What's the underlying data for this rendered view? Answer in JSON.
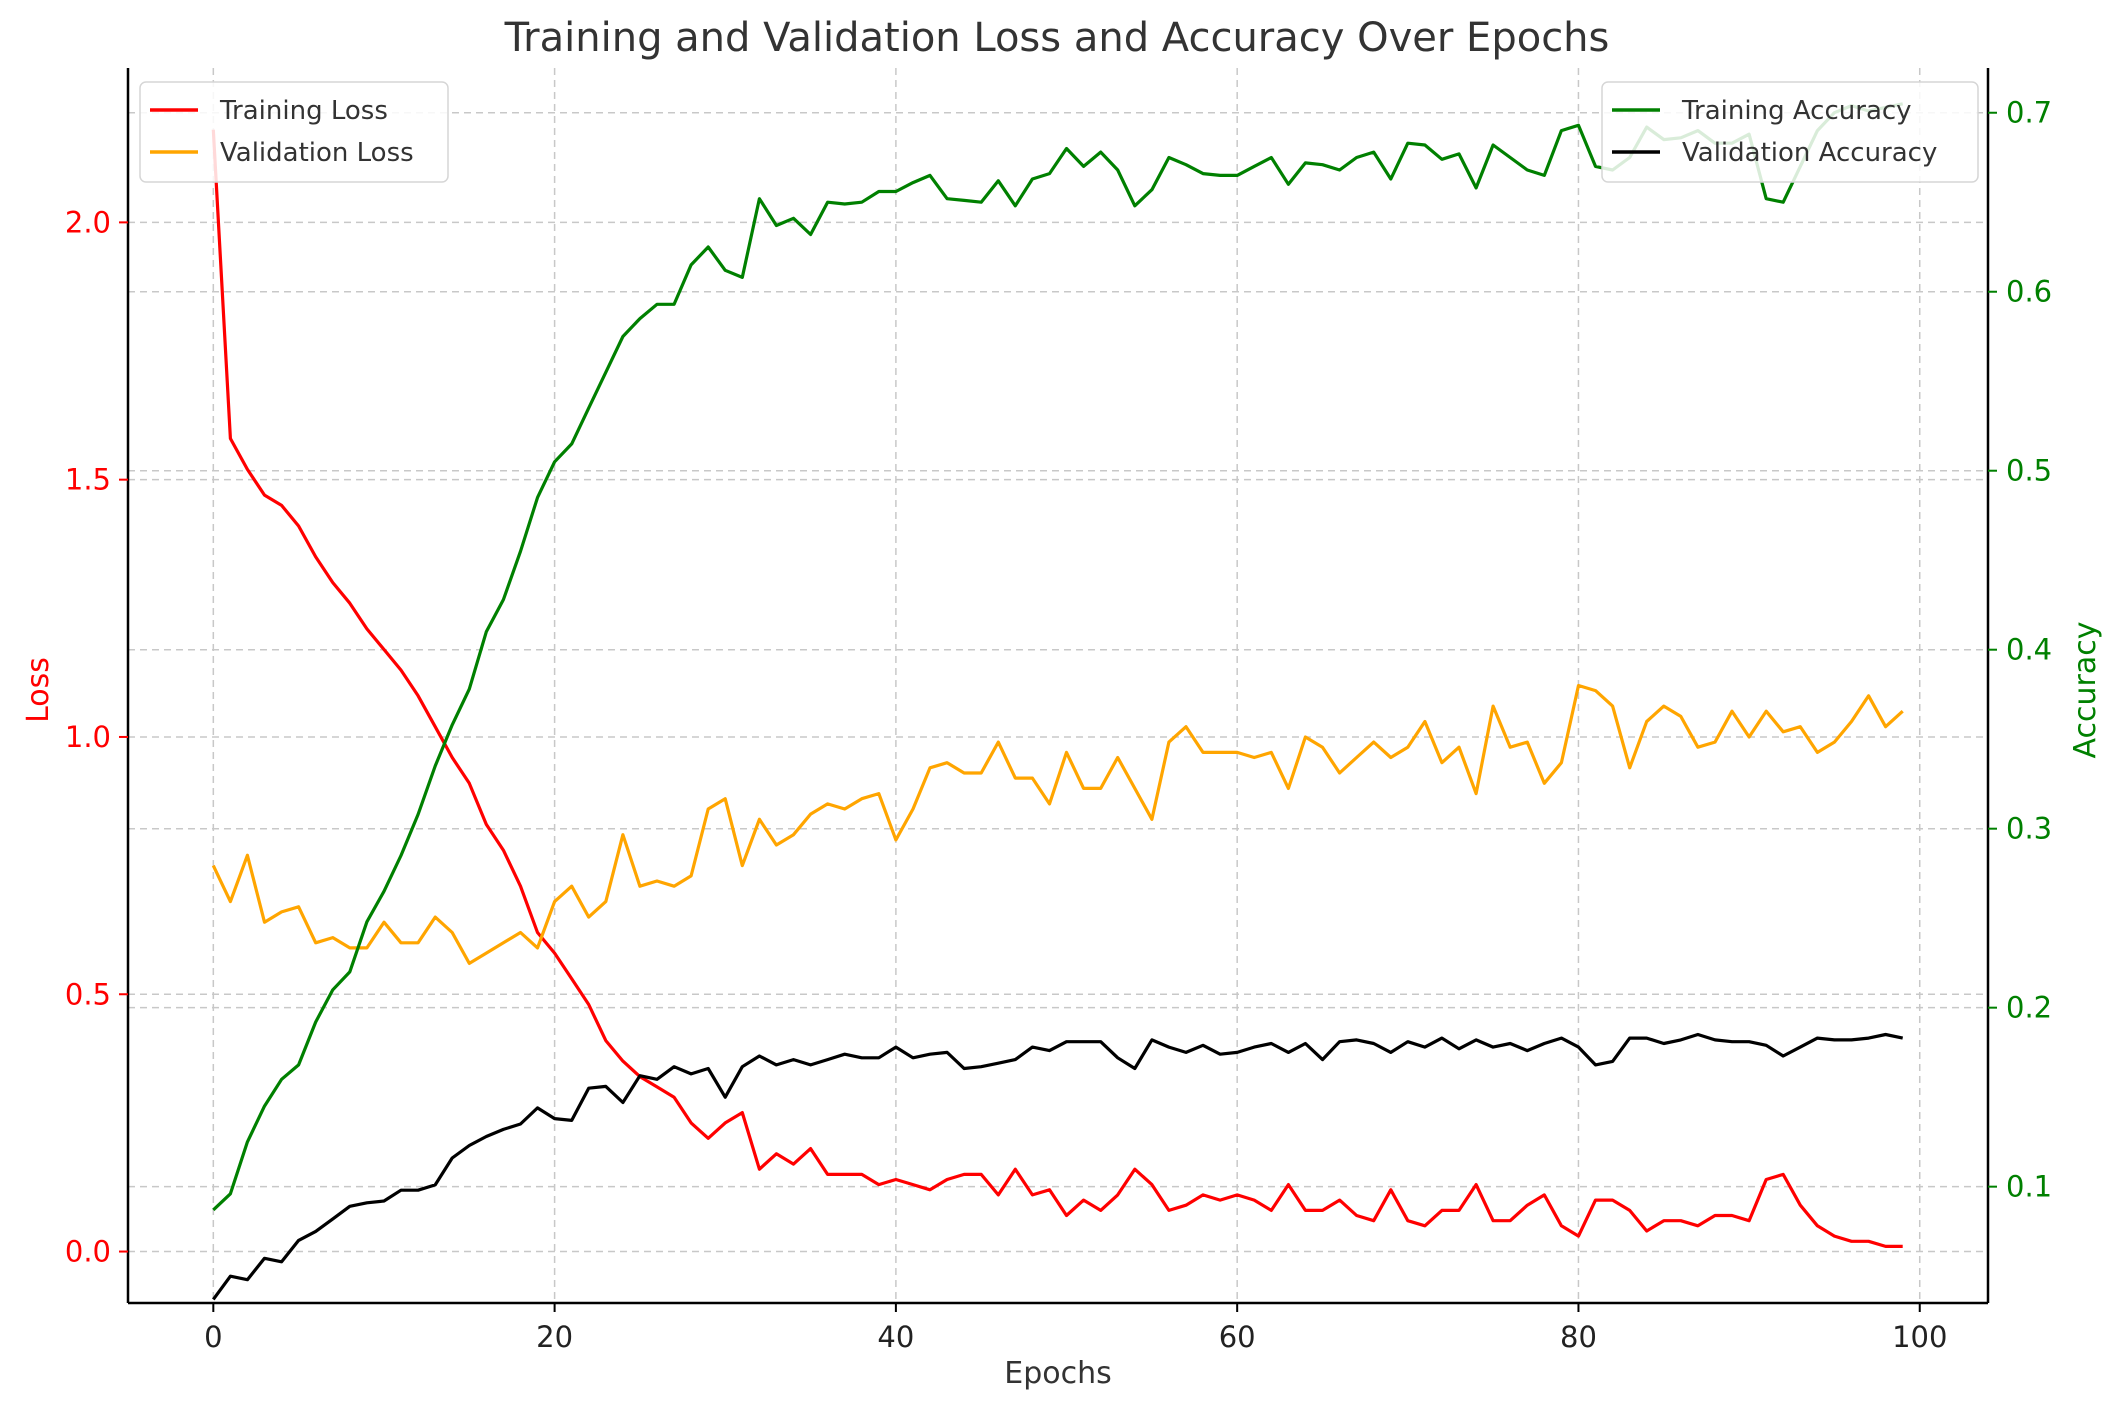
{
  "chart_data": {
    "type": "line",
    "title": "Training and Validation Loss and Accuracy Over Epochs",
    "xlabel": "Epochs",
    "ylabel_left": "Loss",
    "ylabel_right": "Accuracy",
    "xlim": [
      -5,
      104
    ],
    "ylim_left": [
      -0.1,
      2.3
    ],
    "ylim_right": [
      0.035,
      0.725
    ],
    "x_ticks": [
      0,
      20,
      40,
      60,
      80,
      100
    ],
    "y_ticks_left": [
      0.0,
      0.5,
      1.0,
      1.5,
      2.0
    ],
    "y_ticks_right": [
      0.1,
      0.2,
      0.3,
      0.4,
      0.5,
      0.6,
      0.7
    ],
    "left_axis_color": "#ff0000",
    "right_axis_color": "#008000",
    "grid": true,
    "legend_left_placement": "top-left",
    "legend_right_placement": "top-right",
    "x": [
      0,
      1,
      2,
      3,
      4,
      5,
      6,
      7,
      8,
      9,
      10,
      11,
      12,
      13,
      14,
      15,
      16,
      17,
      18,
      19,
      20,
      21,
      22,
      23,
      24,
      25,
      26,
      27,
      28,
      29,
      30,
      31,
      32,
      33,
      34,
      35,
      36,
      37,
      38,
      39,
      40,
      41,
      42,
      43,
      44,
      45,
      46,
      47,
      48,
      49,
      50,
      51,
      52,
      53,
      54,
      55,
      56,
      57,
      58,
      59,
      60,
      61,
      62,
      63,
      64,
      65,
      66,
      67,
      68,
      69,
      70,
      71,
      72,
      73,
      74,
      75,
      76,
      77,
      78,
      79,
      80,
      81,
      82,
      83,
      84,
      85,
      86,
      87,
      88,
      89,
      90,
      91,
      92,
      93,
      94,
      95,
      96,
      97,
      98,
      99
    ],
    "series_left": [
      {
        "name": "Training Loss",
        "color": "#ff0000",
        "values": [
          2.18,
          1.58,
          1.52,
          1.47,
          1.45,
          1.41,
          1.35,
          1.3,
          1.26,
          1.21,
          1.17,
          1.13,
          1.08,
          1.02,
          0.96,
          0.91,
          0.83,
          0.78,
          0.71,
          0.62,
          0.58,
          0.53,
          0.48,
          0.41,
          0.37,
          0.34,
          0.32,
          0.3,
          0.25,
          0.22,
          0.25,
          0.27,
          0.16,
          0.19,
          0.17,
          0.2,
          0.15,
          0.15,
          0.15,
          0.13,
          0.14,
          0.13,
          0.12,
          0.14,
          0.15,
          0.15,
          0.11,
          0.16,
          0.11,
          0.12,
          0.07,
          0.1,
          0.08,
          0.11,
          0.16,
          0.13,
          0.08,
          0.09,
          0.11,
          0.1,
          0.11,
          0.1,
          0.08,
          0.13,
          0.08,
          0.08,
          0.1,
          0.07,
          0.06,
          0.12,
          0.06,
          0.05,
          0.08,
          0.08,
          0.13,
          0.06,
          0.06,
          0.09,
          0.11,
          0.05,
          0.03,
          0.1,
          0.1,
          0.08,
          0.04,
          0.06,
          0.06,
          0.05,
          0.07,
          0.07,
          0.06,
          0.14,
          0.15,
          0.09,
          0.05,
          0.03,
          0.02,
          0.02,
          0.01,
          0.01
        ]
      },
      {
        "name": "Validation Loss",
        "color": "#ffa500",
        "values": [
          0.75,
          0.68,
          0.77,
          0.64,
          0.66,
          0.67,
          0.6,
          0.61,
          0.59,
          0.59,
          0.64,
          0.6,
          0.6,
          0.65,
          0.62,
          0.56,
          0.58,
          0.6,
          0.62,
          0.59,
          0.68,
          0.71,
          0.65,
          0.68,
          0.81,
          0.71,
          0.72,
          0.71,
          0.73,
          0.86,
          0.88,
          0.75,
          0.84,
          0.79,
          0.81,
          0.85,
          0.87,
          0.86,
          0.88,
          0.89,
          0.8,
          0.86,
          0.94,
          0.95,
          0.93,
          0.93,
          0.99,
          0.92,
          0.92,
          0.87,
          0.97,
          0.9,
          0.9,
          0.96,
          0.9,
          0.84,
          0.99,
          1.02,
          0.97,
          0.97,
          0.97,
          0.96,
          0.97,
          0.9,
          1.0,
          0.98,
          0.93,
          0.96,
          0.99,
          0.96,
          0.98,
          1.03,
          0.95,
          0.98,
          0.89,
          1.06,
          0.98,
          0.99,
          0.91,
          0.95,
          1.1,
          1.09,
          1.06,
          0.94,
          1.03,
          1.06,
          1.04,
          0.98,
          0.99,
          1.05,
          1.0,
          1.05,
          1.01,
          1.02,
          0.97,
          0.99,
          1.03,
          1.08,
          1.02,
          1.05
        ]
      }
    ],
    "series_right": [
      {
        "name": "Training Accuracy",
        "color": "#008000",
        "values": [
          0.087,
          0.096,
          0.125,
          0.145,
          0.16,
          0.168,
          0.192,
          0.21,
          0.22,
          0.248,
          0.265,
          0.285,
          0.308,
          0.335,
          0.358,
          0.378,
          0.41,
          0.428,
          0.455,
          0.485,
          0.505,
          0.515,
          0.535,
          0.555,
          0.575,
          0.585,
          0.593,
          0.593,
          0.615,
          0.625,
          0.612,
          0.608,
          0.652,
          0.637,
          0.641,
          0.632,
          0.65,
          0.649,
          0.65,
          0.656,
          0.656,
          0.661,
          0.665,
          0.652,
          0.651,
          0.65,
          0.662,
          0.648,
          0.663,
          0.666,
          0.68,
          0.67,
          0.678,
          0.668,
          0.648,
          0.657,
          0.675,
          0.671,
          0.666,
          0.665,
          0.665,
          0.67,
          0.675,
          0.66,
          0.672,
          0.671,
          0.668,
          0.675,
          0.678,
          0.663,
          0.683,
          0.682,
          0.674,
          0.677,
          0.658,
          0.682,
          0.675,
          0.668,
          0.665,
          0.69,
          0.693,
          0.67,
          0.668,
          0.675,
          0.692,
          0.685,
          0.686,
          0.69,
          0.683,
          0.683,
          0.688,
          0.652,
          0.65,
          0.67,
          0.69,
          0.7,
          0.704,
          0.701,
          0.703,
          0.705
        ]
      },
      {
        "name": "Validation Accuracy",
        "color": "#000000",
        "values": [
          0.037,
          0.05,
          0.048,
          0.06,
          0.058,
          0.07,
          0.075,
          0.082,
          0.089,
          0.091,
          0.092,
          0.098,
          0.098,
          0.101,
          0.116,
          0.123,
          0.128,
          0.132,
          0.135,
          0.144,
          0.138,
          0.137,
          0.155,
          0.156,
          0.147,
          0.162,
          0.16,
          0.167,
          0.163,
          0.166,
          0.15,
          0.167,
          0.173,
          0.168,
          0.171,
          0.168,
          0.171,
          0.174,
          0.172,
          0.172,
          0.178,
          0.172,
          0.174,
          0.175,
          0.166,
          0.167,
          0.169,
          0.171,
          0.178,
          0.176,
          0.181,
          0.181,
          0.181,
          0.172,
          0.166,
          0.182,
          0.178,
          0.175,
          0.179,
          0.174,
          0.175,
          0.178,
          0.18,
          0.175,
          0.18,
          0.171,
          0.181,
          0.182,
          0.18,
          0.175,
          0.181,
          0.178,
          0.183,
          0.177,
          0.182,
          0.178,
          0.18,
          0.176,
          0.18,
          0.183,
          0.178,
          0.168,
          0.17,
          0.183,
          0.183,
          0.18,
          0.182,
          0.185,
          0.182,
          0.181,
          0.181,
          0.179,
          0.173,
          0.178,
          0.183,
          0.182,
          0.182,
          0.183,
          0.185,
          0.183
        ]
      }
    ]
  }
}
